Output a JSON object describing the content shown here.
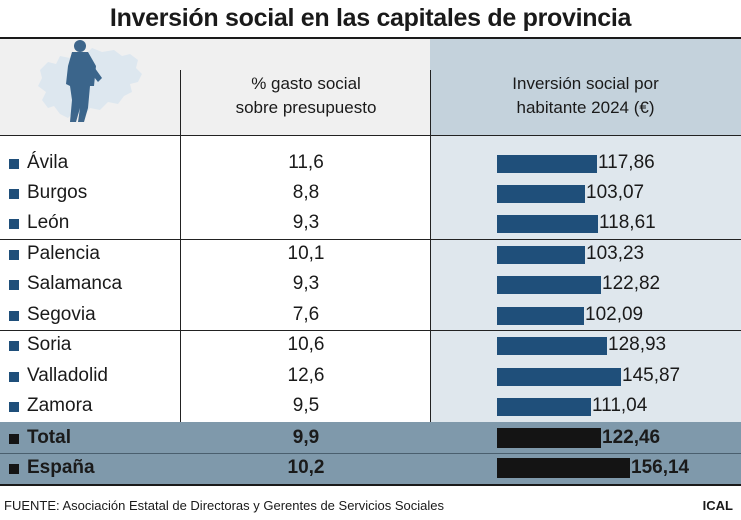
{
  "title": "Inversión social en las capitales de provincia",
  "columns": {
    "pct_line1": "% gasto social",
    "pct_line2": "sobre presupuesto",
    "inv_line1": "Inversión social por",
    "inv_line2": "habitante 2024 (€)"
  },
  "rows": [
    {
      "name": "Ávila",
      "pct": "11,6",
      "inv": "117,86"
    },
    {
      "name": "Burgos",
      "pct": "8,8",
      "inv": "103,07"
    },
    {
      "name": "León",
      "pct": "9,3",
      "inv": "118,61"
    },
    {
      "name": "Palencia",
      "pct": "10,1",
      "inv": "103,23"
    },
    {
      "name": "Salamanca",
      "pct": "9,3",
      "inv": "122,82"
    },
    {
      "name": "Segovia",
      "pct": "7,6",
      "inv": "102,09"
    },
    {
      "name": "Soria",
      "pct": "10,6",
      "inv": "128,93"
    },
    {
      "name": "Valladolid",
      "pct": "12,6",
      "inv": "145,87"
    },
    {
      "name": "Zamora",
      "pct": "9,5",
      "inv": "111,04"
    }
  ],
  "totals": [
    {
      "name": "Total",
      "pct": "9,9",
      "inv": "122,46"
    },
    {
      "name": "España",
      "pct": "10,2",
      "inv": "156,14"
    }
  ],
  "source": "FUENTE: Asociación Estatal de Directoras y Gerentes de Servicios Sociales",
  "brand": "ICAL",
  "icons": {
    "header": "castilla-y-leon-map-with-person-silhouette"
  },
  "colors": {
    "bar": "#1f4f7a",
    "total_bar": "#141414",
    "total_band": "#7f99ab",
    "header_right": "#c4d2dc",
    "rows_right": "#dfe7ed"
  },
  "chart_data": {
    "type": "table",
    "title": "Inversión social en las capitales de provincia",
    "columns": [
      "% gasto social sobre presupuesto",
      "Inversión social por habitante 2024 (€)"
    ],
    "categories": [
      "Ávila",
      "Burgos",
      "León",
      "Palencia",
      "Salamanca",
      "Segovia",
      "Soria",
      "Valladolid",
      "Zamora",
      "Total",
      "España"
    ],
    "series": [
      {
        "name": "% gasto social sobre presupuesto",
        "values": [
          11.6,
          8.8,
          9.3,
          10.1,
          9.3,
          7.6,
          10.6,
          12.6,
          9.5,
          9.9,
          10.2
        ]
      },
      {
        "name": "Inversión social por habitante 2024 (€)",
        "values": [
          117.86,
          103.07,
          118.61,
          103.23,
          122.82,
          102.09,
          128.93,
          145.87,
          111.04,
          122.46,
          156.14
        ]
      }
    ]
  }
}
